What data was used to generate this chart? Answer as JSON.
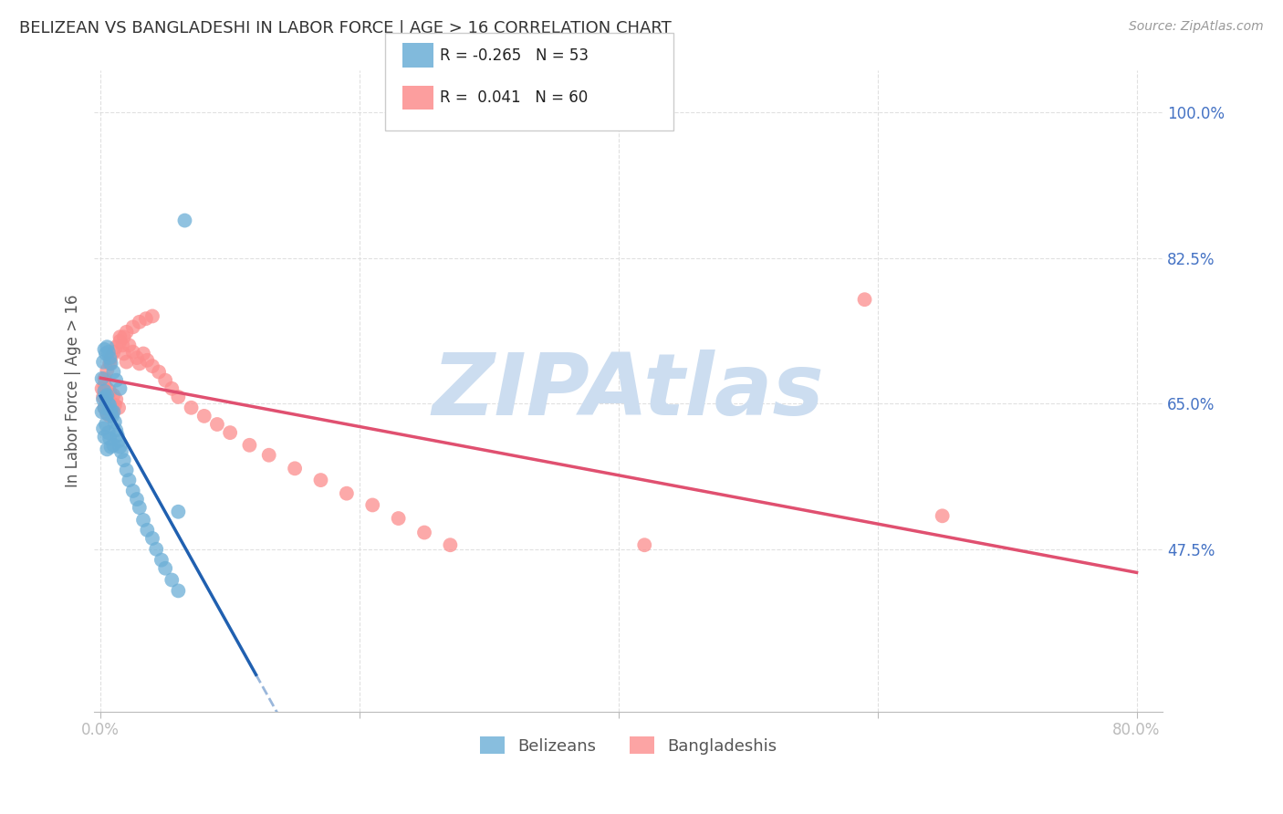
{
  "title": "BELIZEAN VS BANGLADESHI IN LABOR FORCE | AGE > 16 CORRELATION CHART",
  "source": "Source: ZipAtlas.com",
  "ylabel": "In Labor Force | Age > 16",
  "xlim": [
    -0.005,
    0.82
  ],
  "ylim": [
    0.28,
    1.05
  ],
  "belizean_color": "#6baed6",
  "bangladeshi_color": "#fc8d8d",
  "belizean_line_color": "#2060b0",
  "bangladeshi_line_color": "#e05070",
  "belizean_R": -0.265,
  "belizean_N": 53,
  "bangladeshi_R": 0.041,
  "bangladeshi_N": 60,
  "watermark": "ZIPAtlas",
  "watermark_color": "#ccddf0",
  "grid_color": "#dddddd",
  "bg_color": "#ffffff",
  "tick_color": "#4472c4",
  "belizean_x": [
    0.001,
    0.002,
    0.002,
    0.003,
    0.003,
    0.003,
    0.004,
    0.004,
    0.005,
    0.005,
    0.005,
    0.006,
    0.006,
    0.007,
    0.007,
    0.008,
    0.008,
    0.009,
    0.01,
    0.01,
    0.011,
    0.012,
    0.013,
    0.014,
    0.015,
    0.016,
    0.018,
    0.02,
    0.022,
    0.025,
    0.028,
    0.03,
    0.033,
    0.036,
    0.04,
    0.043,
    0.047,
    0.05,
    0.055,
    0.06,
    0.001,
    0.002,
    0.003,
    0.004,
    0.005,
    0.006,
    0.007,
    0.008,
    0.01,
    0.012,
    0.015,
    0.06,
    0.065
  ],
  "belizean_y": [
    0.64,
    0.655,
    0.62,
    0.665,
    0.645,
    0.61,
    0.658,
    0.625,
    0.66,
    0.638,
    0.595,
    0.65,
    0.615,
    0.648,
    0.608,
    0.642,
    0.598,
    0.635,
    0.64,
    0.6,
    0.628,
    0.618,
    0.612,
    0.605,
    0.598,
    0.592,
    0.582,
    0.57,
    0.558,
    0.545,
    0.535,
    0.525,
    0.51,
    0.498,
    0.488,
    0.475,
    0.462,
    0.452,
    0.438,
    0.425,
    0.68,
    0.7,
    0.715,
    0.71,
    0.718,
    0.712,
    0.705,
    0.698,
    0.688,
    0.678,
    0.668,
    0.52,
    0.87
  ],
  "bangladeshi_x": [
    0.001,
    0.002,
    0.003,
    0.003,
    0.004,
    0.005,
    0.005,
    0.006,
    0.007,
    0.007,
    0.008,
    0.009,
    0.01,
    0.011,
    0.012,
    0.014,
    0.015,
    0.017,
    0.018,
    0.02,
    0.022,
    0.025,
    0.028,
    0.03,
    0.033,
    0.036,
    0.04,
    0.045,
    0.05,
    0.055,
    0.06,
    0.07,
    0.08,
    0.09,
    0.1,
    0.115,
    0.13,
    0.15,
    0.17,
    0.19,
    0.21,
    0.23,
    0.25,
    0.27,
    0.003,
    0.005,
    0.007,
    0.008,
    0.01,
    0.012,
    0.015,
    0.018,
    0.02,
    0.025,
    0.03,
    0.035,
    0.04,
    0.59,
    0.65,
    0.42
  ],
  "bangladeshi_y": [
    0.668,
    0.658,
    0.672,
    0.645,
    0.66,
    0.668,
    0.638,
    0.655,
    0.665,
    0.635,
    0.65,
    0.642,
    0.66,
    0.648,
    0.655,
    0.645,
    0.73,
    0.72,
    0.71,
    0.7,
    0.72,
    0.712,
    0.705,
    0.698,
    0.71,
    0.702,
    0.695,
    0.688,
    0.678,
    0.668,
    0.658,
    0.645,
    0.635,
    0.625,
    0.615,
    0.6,
    0.588,
    0.572,
    0.558,
    0.542,
    0.528,
    0.512,
    0.495,
    0.48,
    0.68,
    0.69,
    0.698,
    0.705,
    0.712,
    0.718,
    0.725,
    0.73,
    0.736,
    0.742,
    0.748,
    0.752,
    0.755,
    0.775,
    0.515,
    0.48
  ]
}
